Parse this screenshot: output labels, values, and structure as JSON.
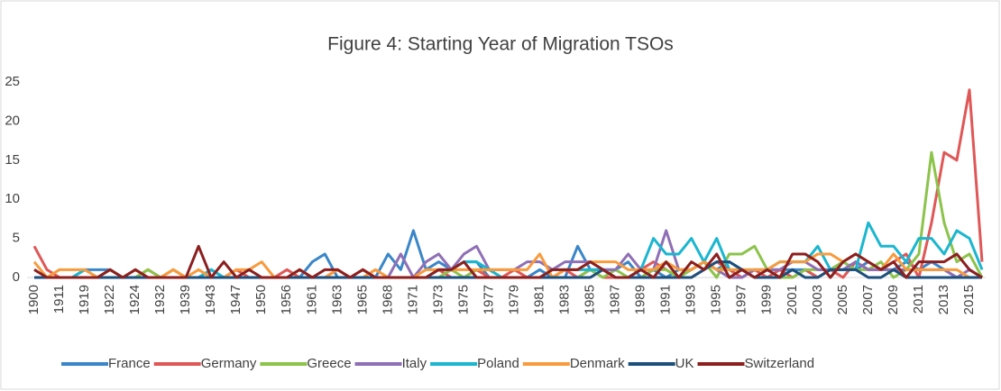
{
  "chart_data": {
    "type": "line",
    "title": "Figure 4: Starting Year of Migration TSOs",
    "categories": [
      "1900",
      null,
      "1911",
      null,
      "1919",
      null,
      "1922",
      null,
      "1924",
      null,
      "1932",
      null,
      "1939",
      null,
      "1943",
      null,
      "1947",
      null,
      "1950",
      null,
      "1956",
      null,
      "1961",
      null,
      "1963",
      null,
      "1965",
      null,
      "1968",
      null,
      "1971",
      null,
      "1973",
      null,
      "1975",
      null,
      "1977",
      null,
      "1979",
      null,
      "1981",
      null,
      "1983",
      null,
      "1985",
      null,
      "1987",
      null,
      "1989",
      null,
      "1991",
      null,
      "1993",
      null,
      "1995",
      null,
      "1997",
      null,
      "1999",
      null,
      "2001",
      null,
      "2003",
      null,
      "2005",
      null,
      "2007",
      null,
      "2009",
      null,
      "2011",
      null,
      "2013",
      null,
      "2015",
      null
    ],
    "series": [
      {
        "name": "France",
        "color": "#3a86c8",
        "values": [
          0,
          0,
          0,
          0,
          1,
          1,
          1,
          0,
          0,
          0,
          0,
          0,
          0,
          0,
          1,
          0,
          0,
          0,
          0,
          0,
          0,
          0,
          2,
          3,
          0,
          0,
          0,
          0,
          3,
          1,
          6,
          1,
          2,
          1,
          2,
          2,
          0,
          0,
          0,
          0,
          1,
          0,
          0,
          4,
          1,
          1,
          1,
          2,
          0,
          1,
          0,
          1,
          1,
          2,
          1,
          2,
          1,
          0,
          1,
          1,
          1,
          1,
          0,
          1,
          2,
          1,
          2,
          1,
          1,
          2,
          1,
          2,
          1,
          0,
          0,
          0
        ]
      },
      {
        "name": "Germany",
        "color": "#e05757",
        "values": [
          4,
          1,
          0,
          0,
          0,
          0,
          1,
          0,
          0,
          1,
          0,
          1,
          0,
          0,
          0,
          0,
          1,
          0,
          0,
          0,
          1,
          0,
          0,
          0,
          1,
          0,
          1,
          0,
          0,
          0,
          0,
          0,
          1,
          0,
          0,
          1,
          0,
          0,
          1,
          0,
          0,
          0,
          1,
          0,
          1,
          0,
          0,
          0,
          1,
          2,
          1,
          0,
          0,
          1,
          2,
          1,
          0,
          1,
          0,
          1,
          0,
          1,
          0,
          1,
          0,
          2,
          1,
          1,
          2,
          3,
          0,
          7,
          16,
          15,
          24,
          2
        ]
      },
      {
        "name": "Greece",
        "color": "#8cc34b",
        "values": [
          0,
          0,
          0,
          0,
          0,
          0,
          1,
          0,
          0,
          1,
          0,
          1,
          0,
          0,
          0,
          0,
          0,
          0,
          0,
          0,
          0,
          0,
          0,
          0,
          0,
          0,
          0,
          0,
          0,
          0,
          0,
          0,
          0,
          1,
          0,
          1,
          1,
          0,
          0,
          0,
          0,
          0,
          0,
          0,
          1,
          0,
          1,
          0,
          0,
          1,
          1,
          0,
          1,
          2,
          0,
          3,
          3,
          4,
          1,
          0,
          0,
          1,
          1,
          1,
          2,
          1,
          1,
          2,
          0,
          1,
          3,
          16,
          7,
          2,
          3,
          0
        ]
      },
      {
        "name": "Italy",
        "color": "#8f6fb5",
        "values": [
          0,
          0,
          0,
          0,
          0,
          0,
          0,
          0,
          0,
          0,
          0,
          0,
          0,
          0,
          0,
          0,
          0,
          0,
          0,
          0,
          0,
          0,
          0,
          0,
          0,
          0,
          0,
          0,
          0,
          3,
          0,
          2,
          3,
          1,
          3,
          4,
          1,
          1,
          1,
          2,
          2,
          1,
          2,
          2,
          2,
          1,
          1,
          3,
          1,
          1,
          6,
          1,
          1,
          2,
          1,
          0,
          0,
          1,
          1,
          1,
          2,
          2,
          1,
          1,
          1,
          2,
          1,
          1,
          1,
          1,
          1,
          1,
          1,
          0,
          1,
          0
        ]
      },
      {
        "name": "Poland",
        "color": "#1bb6cf",
        "values": [
          0,
          0,
          0,
          0,
          1,
          0,
          0,
          0,
          0,
          0,
          0,
          0,
          0,
          0,
          1,
          0,
          0,
          0,
          0,
          0,
          0,
          0,
          0,
          0,
          0,
          0,
          0,
          0,
          0,
          0,
          0,
          0,
          1,
          1,
          2,
          2,
          1,
          0,
          0,
          0,
          0,
          1,
          1,
          1,
          1,
          1,
          0,
          0,
          1,
          5,
          3,
          3,
          5,
          2,
          5,
          1,
          1,
          1,
          1,
          2,
          2,
          2,
          4,
          1,
          1,
          1,
          7,
          4,
          4,
          2,
          5,
          5,
          3,
          6,
          5,
          1
        ]
      },
      {
        "name": "Denmark",
        "color": "#f89b3d",
        "values": [
          2,
          0,
          1,
          1,
          1,
          0,
          0,
          0,
          1,
          0,
          0,
          1,
          0,
          1,
          0,
          0,
          1,
          1,
          2,
          0,
          0,
          1,
          0,
          0,
          1,
          0,
          0,
          1,
          0,
          0,
          0,
          1,
          1,
          1,
          1,
          1,
          1,
          1,
          1,
          1,
          3,
          0,
          1,
          1,
          2,
          2,
          2,
          1,
          1,
          1,
          2,
          1,
          1,
          2,
          1,
          1,
          1,
          1,
          1,
          2,
          2,
          2,
          3,
          3,
          2,
          3,
          2,
          1,
          3,
          1,
          1,
          1,
          1,
          1,
          0,
          0
        ]
      },
      {
        "name": "UK",
        "color": "#1c4f7c",
        "values": [
          0,
          0,
          0,
          0,
          0,
          0,
          0,
          0,
          0,
          0,
          0,
          0,
          0,
          0,
          0,
          0,
          0,
          0,
          0,
          0,
          0,
          0,
          0,
          0,
          0,
          0,
          0,
          0,
          0,
          0,
          0,
          0,
          0,
          0,
          0,
          0,
          0,
          0,
          0,
          0,
          0,
          0,
          0,
          0,
          0,
          1,
          0,
          0,
          0,
          0,
          0,
          0,
          0,
          1,
          2,
          2,
          1,
          0,
          0,
          0,
          1,
          0,
          0,
          1,
          1,
          1,
          0,
          0,
          1,
          0,
          0,
          0,
          0,
          0,
          0,
          0
        ]
      },
      {
        "name": "Switzerland",
        "color": "#8c1f1f",
        "values": [
          1,
          0,
          0,
          0,
          0,
          0,
          1,
          0,
          1,
          0,
          0,
          0,
          0,
          4,
          0,
          2,
          0,
          1,
          0,
          0,
          0,
          1,
          0,
          1,
          1,
          0,
          1,
          0,
          0,
          0,
          0,
          0,
          1,
          1,
          2,
          0,
          0,
          0,
          0,
          0,
          0,
          1,
          1,
          1,
          2,
          1,
          0,
          0,
          1,
          0,
          2,
          0,
          2,
          1,
          3,
          0,
          1,
          0,
          1,
          0,
          3,
          3,
          2,
          0,
          2,
          3,
          2,
          1,
          2,
          0,
          2,
          2,
          2,
          3,
          1,
          0
        ]
      }
    ],
    "ylim": [
      0,
      25
    ],
    "yticks": [
      0,
      5,
      10,
      15,
      20,
      25
    ],
    "grid": false,
    "legend": "bottom"
  }
}
